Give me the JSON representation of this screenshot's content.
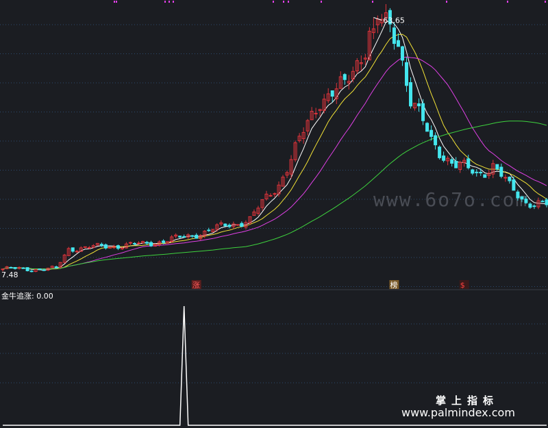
{
  "colors": {
    "background": "#1b1d22",
    "grid": "#2c4a6e",
    "up": "#e0343b",
    "down": "#44e6ee",
    "ma_white": "#ffffff",
    "ma_yellow": "#f2e236",
    "ma_magenta": "#e040e6",
    "ma_green": "#3ed33e",
    "indicator": "#ffffff",
    "marker_dots": "#e040e6"
  },
  "price_panel": {
    "high_label": "63.65",
    "low_label": "7.48",
    "markers": [
      {
        "text": "涨",
        "bar": 47,
        "color": "#ff5a5a",
        "bg": "#5a1e1e"
      },
      {
        "text": "榜",
        "bar": 95,
        "color": "#ffffff",
        "bg": "#7a5a28"
      },
      {
        "text": "$",
        "bar": 112,
        "color": "#ff4040",
        "bg": "#3a1a1a"
      }
    ]
  },
  "indicator_panel": {
    "label": "金牛追涨: 0.00"
  },
  "watermark": "www.6o7o.com",
  "brand": {
    "line1": "掌上指标",
    "line2": "www.palmindex.com"
  },
  "chart_data": {
    "type": "candlestick",
    "bar_count": 133,
    "price_axis": {
      "ylim": [
        6,
        66
      ],
      "grid_lines": 10,
      "shown_high": 63.65,
      "shown_low": 7.48
    },
    "price_keypoints": [
      [
        0,
        8.0
      ],
      [
        13,
        8.0
      ],
      [
        16,
        12.5
      ],
      [
        25,
        13.0
      ],
      [
        34,
        13.5
      ],
      [
        44,
        15.0
      ],
      [
        52,
        17.0
      ],
      [
        60,
        19.0
      ],
      [
        67,
        27.0
      ],
      [
        72,
        36.0
      ],
      [
        77,
        46.0
      ],
      [
        83,
        48.0
      ],
      [
        88,
        58.0
      ],
      [
        90,
        63.65
      ],
      [
        96,
        59.0
      ],
      [
        99,
        46.0
      ],
      [
        104,
        36.0
      ],
      [
        110,
        31.0
      ],
      [
        115,
        29.0
      ],
      [
        119,
        31.0
      ],
      [
        123,
        26.0
      ],
      [
        127,
        23.0
      ],
      [
        132,
        22.0
      ]
    ],
    "series": [
      {
        "label": "MA short",
        "period": 5,
        "color": "#ffffff"
      },
      {
        "label": "MA medium",
        "period": 10,
        "color": "#f2e236"
      },
      {
        "label": "MA long",
        "period": 20,
        "color": "#e040e6"
      },
      {
        "label": "MA longest",
        "period": 60,
        "color": "#3ed33e"
      }
    ],
    "indicator": {
      "name": "金牛追涨",
      "current_value": 0.0,
      "ylim": [
        0,
        1
      ],
      "spikes": [
        {
          "bar": 44,
          "value": 1.0
        }
      ]
    }
  }
}
